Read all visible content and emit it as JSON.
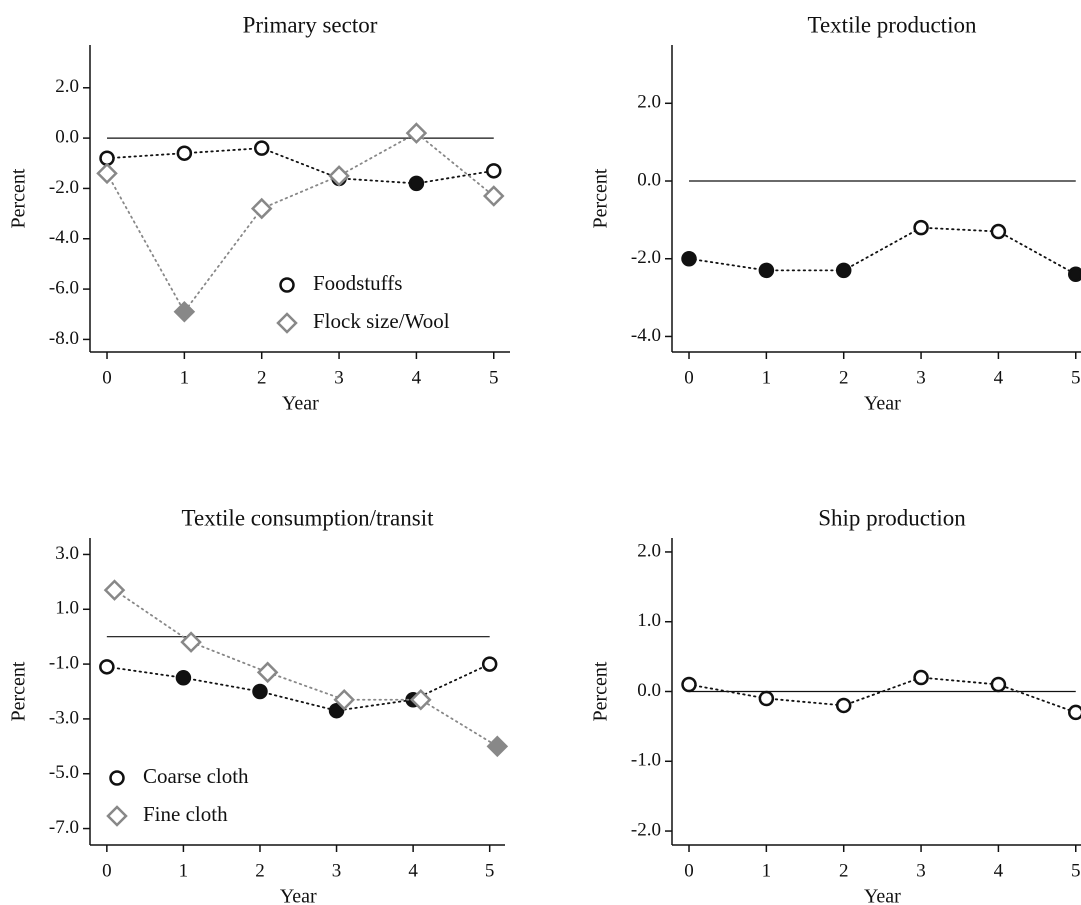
{
  "chart_data": [
    {
      "type": "line",
      "title": "Primary sector",
      "xlabel": "Year",
      "ylabel": "Percent",
      "xlim": [
        -0.22,
        5.21
      ],
      "ylim": [
        -8.5,
        3.7
      ],
      "xticks": [
        0,
        1,
        2,
        3,
        4,
        5
      ],
      "yticks": [
        {
          "value": 2,
          "label": "2.0"
        },
        {
          "value": 0,
          "label": "0.0"
        },
        {
          "value": -2,
          "label": "-2.0"
        },
        {
          "value": -4,
          "label": "-4.0"
        },
        {
          "value": -6,
          "label": "-6.0"
        },
        {
          "value": -8,
          "label": "-8.0"
        }
      ],
      "hline": 0,
      "legend": "lower right",
      "series": [
        {
          "name": "Foodstuffs",
          "color": "#111111",
          "marker": "circle",
          "x": [
            0,
            1,
            2,
            3,
            4,
            5
          ],
          "values": [
            -0.8,
            -0.6,
            -0.4,
            -1.6,
            -1.8,
            -1.3
          ],
          "filled": [
            false,
            false,
            false,
            false,
            true,
            false
          ]
        },
        {
          "name": "Flock size/Wool",
          "color": "#888888",
          "marker": "diamond",
          "x": [
            0,
            1,
            2,
            3,
            4,
            5
          ],
          "values": [
            -1.4,
            -6.9,
            -2.8,
            -1.5,
            0.2,
            -2.3
          ],
          "filled": [
            false,
            true,
            false,
            false,
            false,
            false
          ]
        }
      ]
    },
    {
      "type": "line",
      "title": "Textile production",
      "xlabel": "Year",
      "ylabel": "Percent",
      "xlim": [
        -0.22,
        5.21
      ],
      "ylim": [
        -4.4,
        3.5
      ],
      "xticks": [
        0,
        1,
        2,
        3,
        4,
        5
      ],
      "yticks": [
        {
          "value": 2,
          "label": "2.0"
        },
        {
          "value": 0,
          "label": "0.0"
        },
        {
          "value": -2,
          "label": "-2.0"
        },
        {
          "value": -4,
          "label": "-4.0"
        }
      ],
      "hline": 0,
      "series": [
        {
          "color": "#111111",
          "marker": "circle",
          "x": [
            0,
            1,
            2,
            3,
            4,
            5
          ],
          "values": [
            -2.0,
            -2.3,
            -2.3,
            -1.2,
            -1.3,
            -2.4
          ],
          "filled": [
            true,
            true,
            true,
            false,
            false,
            true
          ]
        }
      ]
    },
    {
      "type": "line",
      "title": "Textile consumption/transit",
      "xlabel": "Year",
      "ylabel": "Percent",
      "xlim": [
        -0.22,
        5.2
      ],
      "ylim": [
        -7.6,
        3.6
      ],
      "xticks": [
        0,
        1,
        2,
        3,
        4,
        5
      ],
      "yticks": [
        {
          "value": 3,
          "label": "3.0"
        },
        {
          "value": 1,
          "label": "1.0"
        },
        {
          "value": -1,
          "label": "-1.0"
        },
        {
          "value": -3,
          "label": "-3.0"
        },
        {
          "value": -5,
          "label": "-5.0"
        },
        {
          "value": -7,
          "label": "-7.0"
        }
      ],
      "hline": 0,
      "legend": "lower left",
      "series": [
        {
          "name": "Coarse cloth",
          "color": "#111111",
          "marker": "circle",
          "x": [
            0,
            1,
            2,
            3,
            4,
            5
          ],
          "values": [
            -1.1,
            -1.5,
            -2.0,
            -2.7,
            -2.3,
            -1.0
          ],
          "filled": [
            false,
            true,
            true,
            true,
            true,
            false
          ]
        },
        {
          "name": "Fine cloth",
          "color": "#888888",
          "marker": "diamond",
          "x": [
            0.1,
            1.1,
            2.1,
            3.1,
            4.1,
            5.1
          ],
          "values": [
            1.7,
            -0.2,
            -1.3,
            -2.3,
            -2.3,
            -4.0
          ],
          "filled": [
            false,
            false,
            false,
            false,
            false,
            true
          ]
        }
      ]
    },
    {
      "type": "line",
      "title": "Ship production",
      "xlabel": "Year",
      "ylabel": "Percent",
      "xlim": [
        -0.22,
        5.21
      ],
      "ylim": [
        -2.2,
        2.2
      ],
      "xticks": [
        0,
        1,
        2,
        3,
        4,
        5
      ],
      "yticks": [
        {
          "value": 2,
          "label": "2.0"
        },
        {
          "value": 1,
          "label": "1.0"
        },
        {
          "value": 0,
          "label": "0.0"
        },
        {
          "value": -1,
          "label": "-1.0"
        },
        {
          "value": -2,
          "label": "-2.0"
        }
      ],
      "hline": 0,
      "series": [
        {
          "color": "#111111",
          "marker": "circle",
          "x": [
            0,
            1,
            2,
            3,
            4,
            5
          ],
          "values": [
            0.1,
            -0.1,
            -0.2,
            0.2,
            0.1,
            -0.3
          ],
          "filled": [
            false,
            false,
            false,
            false,
            false,
            false
          ]
        }
      ]
    }
  ]
}
